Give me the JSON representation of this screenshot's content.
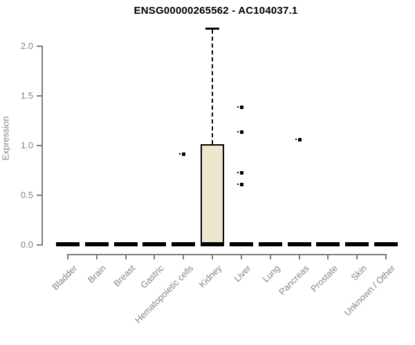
{
  "title": "ENSG00000265562 - AC104037.1",
  "chart_data": {
    "type": "boxplot",
    "title": "ENSG00000265562 - AC104037.1",
    "xlabel": "",
    "ylabel": "Expression",
    "ylim": [
      0,
      2.2
    ],
    "yticks": [
      0.0,
      0.5,
      1.0,
      1.5,
      2.0
    ],
    "grid": false,
    "legend": null,
    "categories": [
      "Bladder",
      "Brain",
      "Breast",
      "Gastric",
      "Hematopoietic cells",
      "Kidney",
      "Liver",
      "Lung",
      "Pancreas",
      "Prostate",
      "Skin",
      "Unknown / Other"
    ],
    "boxes": [
      {
        "category": "Bladder",
        "median": 0,
        "q1": 0,
        "q3": 0,
        "whisker_low": 0,
        "whisker_high": 0,
        "outliers": []
      },
      {
        "category": "Brain",
        "median": 0,
        "q1": 0,
        "q3": 0,
        "whisker_low": 0,
        "whisker_high": 0,
        "outliers": []
      },
      {
        "category": "Breast",
        "median": 0,
        "q1": 0,
        "q3": 0,
        "whisker_low": 0,
        "whisker_high": 0,
        "outliers": []
      },
      {
        "category": "Gastric",
        "median": 0,
        "q1": 0,
        "q3": 0,
        "whisker_low": 0,
        "whisker_high": 0,
        "outliers": []
      },
      {
        "category": "Hematopoietic cells",
        "median": 0,
        "q1": 0,
        "q3": 0,
        "whisker_low": 0,
        "whisker_high": 0,
        "outliers": [
          0.92
        ]
      },
      {
        "category": "Kidney",
        "median": 0,
        "q1": 0,
        "q3": 1.01,
        "whisker_low": 0,
        "whisker_high": 2.18,
        "outliers": []
      },
      {
        "category": "Liver",
        "median": 0,
        "q1": 0,
        "q3": 0,
        "whisker_low": 0,
        "whisker_high": 0,
        "outliers": [
          1.39,
          1.14,
          0.73,
          0.61
        ]
      },
      {
        "category": "Lung",
        "median": 0,
        "q1": 0,
        "q3": 0,
        "whisker_low": 0,
        "whisker_high": 0,
        "outliers": []
      },
      {
        "category": "Pancreas",
        "median": 0,
        "q1": 0,
        "q3": 0,
        "whisker_low": 0,
        "whisker_high": 0,
        "outliers": [
          1.06
        ]
      },
      {
        "category": "Prostate",
        "median": 0,
        "q1": 0,
        "q3": 0,
        "whisker_low": 0,
        "whisker_high": 0,
        "outliers": []
      },
      {
        "category": "Skin",
        "median": 0,
        "q1": 0,
        "q3": 0,
        "whisker_low": 0,
        "whisker_high": 0,
        "outliers": []
      },
      {
        "category": "Unknown / Other",
        "median": 0,
        "q1": 0,
        "q3": 0,
        "whisker_low": 0,
        "whisker_high": 0,
        "outliers": []
      }
    ],
    "colors": {
      "box_fill": "#EDE7CD",
      "box_border": "#000000",
      "whisker": "#000000",
      "outlier": "#000000",
      "axis": "#7A7A7A",
      "tick_label": "#838383",
      "title": "#000000",
      "background": "#FFFFFF"
    }
  }
}
